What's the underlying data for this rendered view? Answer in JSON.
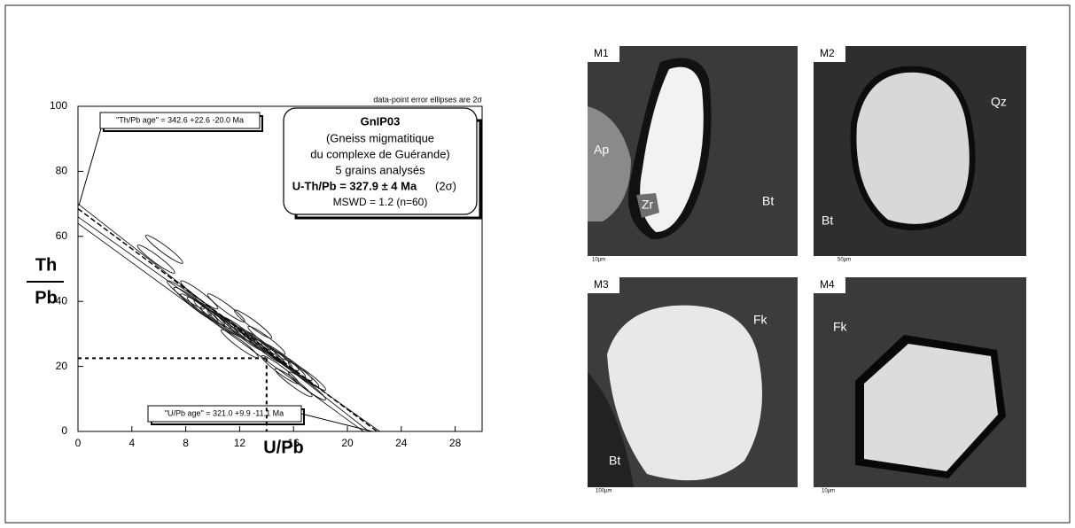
{
  "chart_data": {
    "type": "isochron",
    "note": "data-point error ellipses are 2σ",
    "ylabel_top": "Th",
    "ylabel_bottom": "Pb",
    "xlabel": "U/Pb",
    "xlim": [
      0,
      30
    ],
    "xticks": [
      0,
      4,
      8,
      12,
      16,
      20,
      24,
      28
    ],
    "ylim": [
      0,
      100
    ],
    "yticks": [
      0,
      20,
      40,
      60,
      80,
      100
    ],
    "box": {
      "sample": "GnIP03",
      "lines": [
        "(Gneiss migmatitique",
        "du complexe de Guérande)",
        "5 grains analysés"
      ],
      "age": "U-Th/Pb = 327.9 ± 4 Ma",
      "sigma": "(2σ)",
      "mswd": "MSWD = 1.2 (n=60)"
    },
    "th_age": "\"Th/Pb age\" =  342.6 +22.6 -20.0 Ma",
    "u_age": "\"U/Pb age\" = 321.0 +9.9 -11.1 Ma",
    "lines": [
      {
        "style": "dashed",
        "x": [
          0,
          22.2
        ],
        "y": [
          68.5,
          0
        ]
      },
      {
        "style": "solid",
        "x": [
          0,
          21.6
        ],
        "y": [
          70,
          0
        ]
      },
      {
        "style": "solid",
        "x": [
          0,
          22.4
        ],
        "y": [
          66,
          0
        ]
      },
      {
        "style": "solid",
        "x": [
          0,
          21.2
        ],
        "y": [
          64,
          0
        ]
      }
    ],
    "reference": {
      "x": 14,
      "y": 22.5
    },
    "ellipses": {
      "x": [
        8,
        8.5,
        9,
        9.5,
        10,
        10.5,
        11,
        11.5,
        12,
        12.5,
        13,
        13.5,
        14,
        14.5,
        15,
        15.5,
        16,
        16.5,
        17,
        11,
        13,
        9,
        14,
        15,
        12,
        6.4,
        5.8,
        17,
        16
      ],
      "y": [
        42,
        40,
        38,
        37,
        36,
        34,
        33,
        32,
        31,
        29,
        28,
        27,
        25,
        24,
        23,
        21,
        20,
        18,
        17,
        38,
        33,
        42,
        28,
        19,
        27,
        56,
        53,
        14,
        15
      ]
    }
  },
  "images": [
    {
      "label": "M1",
      "annotations": [
        "Ap",
        "Zr",
        "Bt"
      ],
      "scale": "10µm"
    },
    {
      "label": "M2",
      "annotations": [
        "Qz",
        "Bt"
      ],
      "scale": "50µm"
    },
    {
      "label": "M3",
      "annotations": [
        "Fk",
        "Bt"
      ],
      "scale": "100µm"
    },
    {
      "label": "M4",
      "annotations": [
        "Fk"
      ],
      "scale": "10µm"
    }
  ]
}
